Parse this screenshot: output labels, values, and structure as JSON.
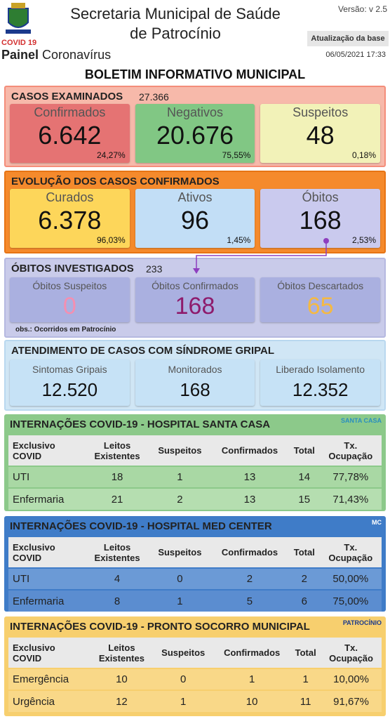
{
  "header": {
    "title_line1": "Secretaria Municipal de Saúde",
    "title_line2": "de Patrocínio",
    "version": "Versão: v 2.5",
    "covid": "COVID 19",
    "painel": "Painel",
    "coronavirus": "Coronavírus",
    "update_label": "Atualização da base",
    "update_date": "06/05/2021 17:33"
  },
  "bulletin_title": "BOLETIM INFORMATIVO MUNICIPAL",
  "casos": {
    "title": "CASOS EXAMINADOS",
    "total": "27.366",
    "cards": [
      {
        "label": "Confirmados",
        "value": "6.642",
        "pct": "24,27%"
      },
      {
        "label": "Negativos",
        "value": "20.676",
        "pct": "75,55%"
      },
      {
        "label": "Suspeitos",
        "value": "48",
        "pct": "0,18%"
      }
    ]
  },
  "evolucao": {
    "title": "EVOLUÇÃO DOS CASOS CONFIRMADOS",
    "cards": [
      {
        "label": "Curados",
        "value": "6.378",
        "pct": "96,03%"
      },
      {
        "label": "Ativos",
        "value": "96",
        "pct": "1,45%"
      },
      {
        "label": "Óbitos",
        "value": "168",
        "pct": "2,53%"
      }
    ]
  },
  "obitos": {
    "title": "ÓBITOS INVESTIGADOS",
    "total": "233",
    "note": "obs.: Ocorridos em Patrocínio",
    "cards": [
      {
        "label": "Óbitos Suspeitos",
        "value": "0"
      },
      {
        "label": "Óbitos Confirmados",
        "value": "168"
      },
      {
        "label": "Óbitos Descartados",
        "value": "65"
      }
    ]
  },
  "atendimento": {
    "title": "ATENDIMENTO DE CASOS COM SÍNDROME GRIPAL",
    "cards": [
      {
        "label": "Sintomas Gripais",
        "value": "12.520"
      },
      {
        "label": "Monitorados",
        "value": "168"
      },
      {
        "label": "Liberado Isolamento",
        "value": "12.352"
      }
    ]
  },
  "tables": [
    {
      "title": "INTERNAÇÕES COVID-19 - HOSPITAL SANTA CASA",
      "logo": "SANTA CASA",
      "header": [
        "Exclusivo\nCOVID",
        "Leitos\nExistentes",
        "Suspeitos",
        "Confirmados",
        "Total",
        "Tx.\nOcupação"
      ],
      "rows": [
        [
          "UTI",
          "18",
          "1",
          "13",
          "14",
          "77,78%"
        ],
        [
          "Enfermaria",
          "21",
          "2",
          "13",
          "15",
          "71,43%"
        ]
      ]
    },
    {
      "title": "INTERNAÇÕES COVID-19 - HOSPITAL MED CENTER",
      "logo": "MC",
      "header": [
        "Exclusivo\nCOVID",
        "Leitos\nExistentes",
        "Suspeitos",
        "Confirmados",
        "Total",
        "Tx.\nOcupação"
      ],
      "rows": [
        [
          "UTI",
          "4",
          "0",
          "2",
          "2",
          "50,00%"
        ],
        [
          "Enfermaria",
          "8",
          "1",
          "5",
          "6",
          "75,00%"
        ]
      ]
    },
    {
      "title": "INTERNAÇÕES COVID-19 - PRONTO SOCORRO MUNICIPAL",
      "logo": "PATROCÍNIO",
      "header": [
        "Exclusivo\nCOVID",
        "Leitos\nExistentes",
        "Suspeitos",
        "Confirmados",
        "Total",
        "Tx.\nOcupação"
      ],
      "rows": [
        [
          "Emergência",
          "10",
          "0",
          "1",
          "1",
          "10,00%"
        ],
        [
          "Urgência",
          "12",
          "1",
          "10",
          "11",
          "91,67%"
        ]
      ]
    }
  ]
}
